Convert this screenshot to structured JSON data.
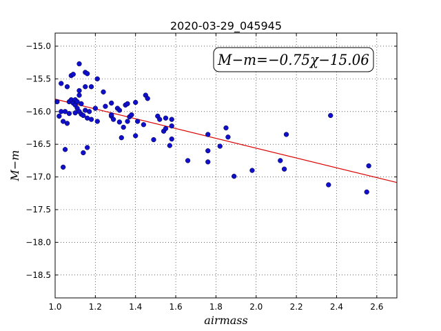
{
  "chart_data": {
    "type": "scatter",
    "title": "2020-03-29_045945",
    "xlabel": "airmass",
    "ylabel": "M−m",
    "annotation": "M−m=−0.75χ−15.06",
    "xlim": [
      1.0,
      2.7
    ],
    "ylim": [
      -18.85,
      -14.8
    ],
    "x_ticks": [
      1.0,
      1.2,
      1.4,
      1.6,
      1.8,
      2.0,
      2.2,
      2.4,
      2.6
    ],
    "x_tick_labels": [
      "1.0",
      "1.2",
      "1.4",
      "1.6",
      "1.8",
      "2.0",
      "2.2",
      "2.4",
      "2.6"
    ],
    "y_ticks": [
      -15.0,
      -15.5,
      -16.0,
      -16.5,
      -17.0,
      -17.5,
      -18.0,
      -18.5
    ],
    "y_tick_labels": [
      "−15.0",
      "−15.5",
      "−16.0",
      "−16.5",
      "−17.0",
      "−17.5",
      "−18.0",
      "−18.5"
    ],
    "grid": true,
    "fit": {
      "slope": -0.75,
      "intercept": -15.06,
      "color": "#dd0000"
    },
    "point_color": "#1010cc",
    "x": [
      1.01,
      1.02,
      1.03,
      1.03,
      1.04,
      1.04,
      1.05,
      1.05,
      1.06,
      1.06,
      1.07,
      1.07,
      1.08,
      1.08,
      1.09,
      1.09,
      1.1,
      1.1,
      1.1,
      1.11,
      1.11,
      1.12,
      1.12,
      1.12,
      1.12,
      1.13,
      1.13,
      1.14,
      1.14,
      1.15,
      1.15,
      1.15,
      1.16,
      1.16,
      1.16,
      1.17,
      1.18,
      1.18,
      1.2,
      1.21,
      1.21,
      1.24,
      1.25,
      1.28,
      1.28,
      1.28,
      1.29,
      1.31,
      1.32,
      1.32,
      1.33,
      1.34,
      1.35,
      1.36,
      1.36,
      1.37,
      1.38,
      1.4,
      1.4,
      1.41,
      1.44,
      1.45,
      1.46,
      1.49,
      1.51,
      1.52,
      1.54,
      1.55,
      1.55,
      1.57,
      1.58,
      1.58,
      1.58,
      1.66,
      1.76,
      1.76,
      1.76,
      1.82,
      1.85,
      1.86,
      1.89,
      1.98,
      2.12,
      2.14,
      2.15,
      2.36,
      2.37,
      2.55,
      2.56
    ],
    "y": [
      -15.85,
      -16.07,
      -16.0,
      -15.57,
      -16.15,
      -16.85,
      -16.0,
      -16.58,
      -16.18,
      -15.62,
      -15.85,
      -16.03,
      -15.82,
      -15.45,
      -15.87,
      -15.43,
      -15.82,
      -16.02,
      -15.9,
      -15.95,
      -15.85,
      -15.27,
      -15.68,
      -15.75,
      -16.0,
      -16.04,
      -15.88,
      -16.06,
      -16.63,
      -15.4,
      -15.62,
      -15.98,
      -15.42,
      -16.1,
      -16.55,
      -16.0,
      -15.62,
      -16.12,
      -15.95,
      -15.5,
      -16.15,
      -15.7,
      -15.92,
      -15.87,
      -16.07,
      -16.05,
      -16.12,
      -15.95,
      -15.98,
      -16.16,
      -16.4,
      -16.24,
      -15.9,
      -15.88,
      -16.15,
      -16.08,
      -16.05,
      -15.86,
      -16.37,
      -16.15,
      -16.2,
      -15.75,
      -15.8,
      -16.43,
      -16.07,
      -16.12,
      -16.3,
      -16.26,
      -16.1,
      -16.52,
      -16.42,
      -16.12,
      -16.22,
      -16.75,
      -16.35,
      -16.6,
      -16.77,
      -16.53,
      -16.25,
      -16.39,
      -16.99,
      -16.9,
      -16.75,
      -16.88,
      -16.35,
      -17.12,
      -16.06,
      -17.23,
      -16.83
    ]
  }
}
